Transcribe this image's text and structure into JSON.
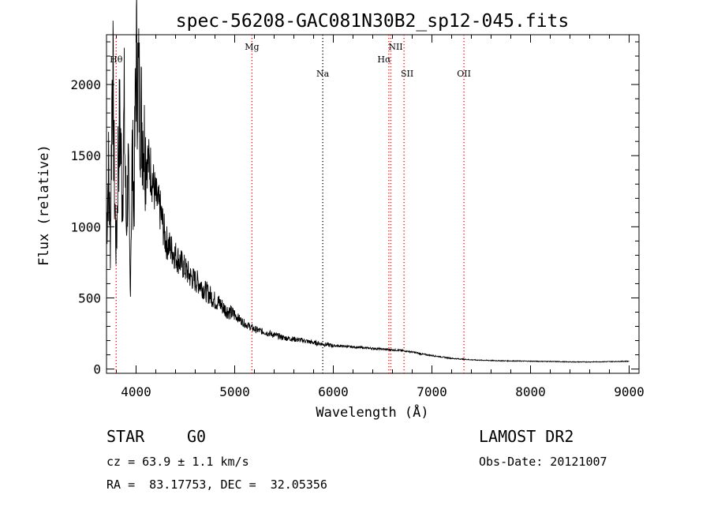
{
  "chart_data": {
    "type": "line",
    "title": "spec-56208-GAC081N30B2_sp12-045.fits",
    "xlabel": "Wavelength (Å)",
    "ylabel": "Flux (relative)",
    "xlim": [
      3700,
      9100
    ],
    "ylim": [
      -30,
      2350
    ],
    "xticks": [
      4000,
      5000,
      6000,
      7000,
      8000,
      9000
    ],
    "yticks": [
      0,
      500,
      1000,
      1500,
      2000
    ],
    "grid": false,
    "series": [
      {
        "x": [
          3700,
          3720,
          3740,
          3760,
          3780,
          3800,
          3820,
          3840,
          3860,
          3880,
          3900,
          3920,
          3940,
          3960,
          3980,
          4000,
          4050,
          4100,
          4150,
          4200,
          4250,
          4300,
          4350,
          4400,
          4450,
          4500,
          4550,
          4600,
          4650,
          4700,
          4750,
          4800,
          4850,
          4900,
          4950,
          5000,
          5050,
          5100,
          5150,
          5200,
          5300,
          5400,
          5500,
          5600,
          5700,
          5800,
          5900,
          6000,
          6100,
          6200,
          6300,
          6400,
          6500,
          6600,
          6700,
          6800,
          6900,
          7000,
          7100,
          7200,
          7300,
          7400,
          7500,
          7600,
          7700,
          7800,
          7900,
          8000,
          8200,
          8400,
          8600,
          8800,
          9000
        ],
        "y": [
          1000,
          1400,
          900,
          2250,
          1300,
          800,
          1600,
          1700,
          1200,
          1800,
          1000,
          1400,
          550,
          1500,
          1200,
          2200,
          1800,
          1500,
          1400,
          1200,
          1100,
          900,
          850,
          800,
          750,
          700,
          650,
          620,
          600,
          550,
          520,
          480,
          460,
          420,
          400,
          380,
          350,
          320,
          300,
          280,
          260,
          240,
          220,
          210,
          200,
          185,
          175,
          165,
          160,
          155,
          150,
          145,
          140,
          135,
          130,
          120,
          105,
          95,
          85,
          75,
          70,
          65,
          62,
          60,
          58,
          57,
          56,
          55,
          53,
          50,
          50,
          52,
          55
        ]
      }
    ],
    "lines": [
      {
        "label": "Hθ",
        "x": 3798,
        "color": "#ff0000",
        "style": "dotted"
      },
      {
        "label": "Mg",
        "x": 5175,
        "color": "#ff0000",
        "style": "dotted"
      },
      {
        "label": "Na",
        "x": 5893,
        "color": "#000000",
        "style": "dotted"
      },
      {
        "label": "NII",
        "x": 6584,
        "color": "#ff0000",
        "style": "dotted"
      },
      {
        "label": "Hα",
        "x": 6563,
        "color": "#ff0000",
        "style": "dotted"
      },
      {
        "label": "SII",
        "x": 6717,
        "color": "#ff0000",
        "style": "dotted"
      },
      {
        "label": "OII",
        "x": 7325,
        "color": "#ff0000",
        "style": "dotted"
      }
    ]
  },
  "info": {
    "class": "STAR",
    "subclass": "G0",
    "survey": "LAMOST DR2",
    "cz": "cz = 63.9 ± 1.1 km/s",
    "obs_date": "Obs-Date: 20121007",
    "radec": "RA =  83.17753, DEC =  32.05356"
  }
}
